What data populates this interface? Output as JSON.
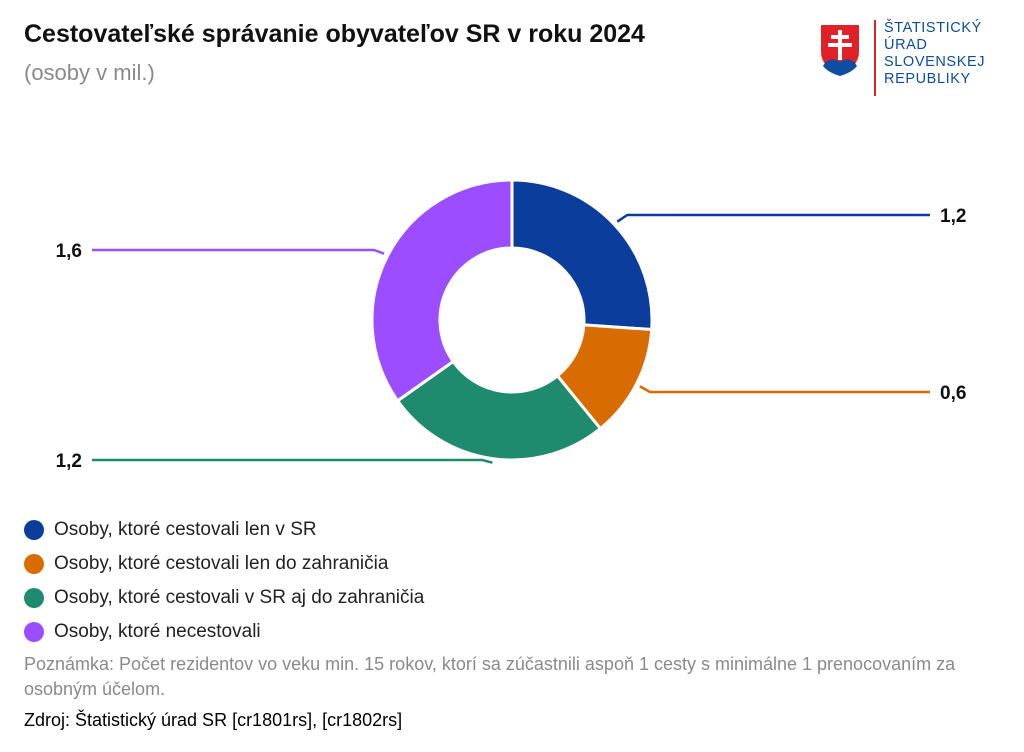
{
  "header": {
    "title": "Cestovateľské správanie obyvateľov SR v roku 2024",
    "subtitle": "(osoby v mil.)"
  },
  "logo": {
    "lines": [
      "ŠTATISTICKÝ",
      "ÚRAD",
      "SLOVENSKEJ",
      "REPUBLIKY"
    ],
    "icon": "slovak-coat-of-arms-icon"
  },
  "colors": {
    "blue": "#0b3d9c",
    "orange": "#d96c00",
    "green": "#1e8a6e",
    "purple": "#9b4dff",
    "logo_blue": "#0b4ea2",
    "logo_red": "#e02127"
  },
  "chart_data": {
    "type": "pie",
    "donut": true,
    "categories": [
      "Osoby, ktoré cestovali len v SR",
      "Osoby, ktoré cestovali len do zahraničia",
      "Osoby, ktoré cestovali v SR aj do zahraničia",
      "Osoby, ktoré necestovali"
    ],
    "values": [
      1.2,
      0.6,
      1.2,
      1.6
    ],
    "data_labels": [
      "1,2",
      "0,6",
      "1,2",
      "1,6"
    ],
    "colors": [
      "#0b3d9c",
      "#d96c00",
      "#1e8a6e",
      "#9b4dff"
    ],
    "legend_position": "bottom-left"
  },
  "footer": {
    "note": "Poznámka: Počet rezidentov vo veku min. 15 rokov, ktorí sa zúčastnili aspoň 1 cesty s minimálne 1 prenocovaním za osobným účelom.",
    "source": "Zdroj: Štatistický úrad SR [cr1801rs], [cr1802rs]"
  }
}
